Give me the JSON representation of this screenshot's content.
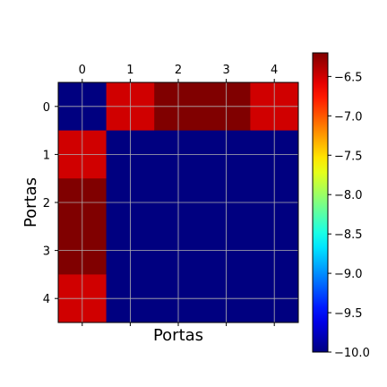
{
  "chart_data": {
    "type": "heatmap",
    "xlabel": "Portas",
    "ylabel": "Portas",
    "x_categories": [
      "0",
      "1",
      "2",
      "3",
      "4"
    ],
    "y_categories": [
      "0",
      "1",
      "2",
      "3",
      "4"
    ],
    "values": [
      [
        -10.0,
        -6.5,
        -6.2,
        -6.2,
        -6.5
      ],
      [
        -6.5,
        -10.0,
        -10.0,
        -10.0,
        -10.0
      ],
      [
        -6.2,
        -10.0,
        -10.0,
        -10.0,
        -10.0
      ],
      [
        -6.2,
        -10.0,
        -10.0,
        -10.0,
        -10.0
      ],
      [
        -6.5,
        -10.0,
        -10.0,
        -10.0,
        -10.0
      ]
    ],
    "colorbar": {
      "colormap": "jet",
      "min": -10.0,
      "max": -6.2,
      "ticks": [
        -10.0,
        -9.5,
        -9.0,
        -8.5,
        -8.0,
        -7.5,
        -7.0,
        -6.5
      ],
      "tick_labels": [
        "−10.0",
        "−9.5",
        "−9.0",
        "−8.5",
        "−8.0",
        "−7.5",
        "−7.0",
        "−6.5"
      ]
    },
    "x_ticks_position": "top",
    "grid": true
  }
}
